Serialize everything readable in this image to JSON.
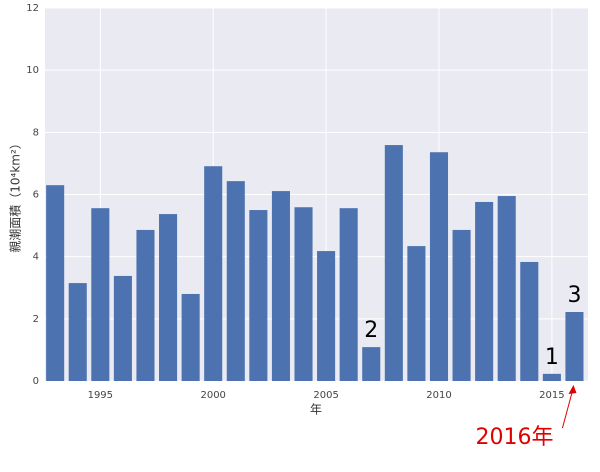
{
  "chart_data": {
    "type": "bar",
    "ylabel": "親潮面積（10⁴km²）",
    "xlabel": "年",
    "x": [
      1993,
      1994,
      1995,
      1996,
      1997,
      1998,
      1999,
      2000,
      2001,
      2002,
      2003,
      2004,
      2005,
      2006,
      2007,
      2008,
      2009,
      2010,
      2011,
      2012,
      2013,
      2014,
      2015,
      2016
    ],
    "values": [
      6.3,
      3.15,
      5.56,
      3.38,
      4.86,
      5.37,
      2.8,
      6.91,
      6.43,
      5.5,
      6.11,
      5.59,
      4.18,
      5.56,
      1.09,
      7.59,
      4.34,
      7.36,
      4.86,
      5.76,
      5.95,
      3.83,
      0.23,
      2.22
    ],
    "color": "#4c72b0",
    "xlim": [
      1992.55,
      2016.6
    ],
    "xticks": [
      1995,
      2000,
      2005,
      2010,
      2015
    ],
    "ylim": [
      0,
      12
    ],
    "yticks": [
      0,
      2,
      4,
      6,
      8,
      10,
      12
    ],
    "grid": true,
    "annotations": [
      {
        "text": "2",
        "x": 2007
      },
      {
        "text": "1",
        "x": 2015
      },
      {
        "text": "3",
        "x": 2016
      }
    ],
    "callout": {
      "text": "2016年",
      "x": 2016,
      "color": "#e00000"
    }
  }
}
